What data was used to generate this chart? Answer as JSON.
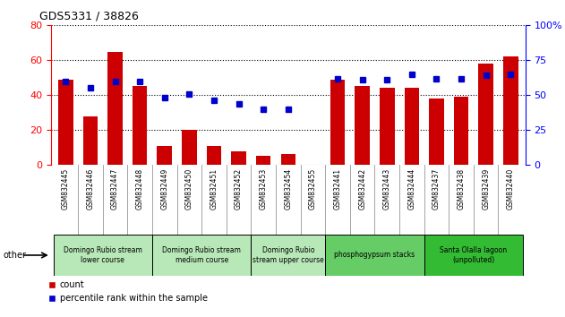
{
  "title": "GDS5331 / 38826",
  "samples": [
    "GSM832445",
    "GSM832446",
    "GSM832447",
    "GSM832448",
    "GSM832449",
    "GSM832450",
    "GSM832451",
    "GSM832452",
    "GSM832453",
    "GSM832454",
    "GSM832455",
    "GSM832441",
    "GSM832442",
    "GSM832443",
    "GSM832444",
    "GSM832437",
    "GSM832438",
    "GSM832439",
    "GSM832440"
  ],
  "counts": [
    49,
    28,
    65,
    45,
    11,
    20,
    11,
    8,
    5,
    6,
    0,
    49,
    45,
    44,
    44,
    38,
    39,
    58,
    62
  ],
  "percentiles": [
    60,
    55,
    60,
    60,
    48,
    51,
    46,
    44,
    40,
    40,
    0,
    62,
    61,
    61,
    65,
    62,
    62,
    64,
    65
  ],
  "groups": [
    {
      "label": "Domingo Rubio stream\nlower course",
      "start": 0,
      "end": 3,
      "color": "#b8e8b8"
    },
    {
      "label": "Domingo Rubio stream\nmedium course",
      "start": 4,
      "end": 7,
      "color": "#b8e8b8"
    },
    {
      "label": "Domingo Rubio\nstream upper course",
      "start": 8,
      "end": 10,
      "color": "#b8e8b8"
    },
    {
      "label": "phosphogypsum stacks",
      "start": 11,
      "end": 14,
      "color": "#66cc66"
    },
    {
      "label": "Santa Olalla lagoon\n(unpolluted)",
      "start": 15,
      "end": 18,
      "color": "#33bb33"
    }
  ],
  "bar_color": "#cc0000",
  "dot_color": "#0000cc",
  "ylim_left": [
    0,
    80
  ],
  "ylim_right": [
    0,
    100
  ],
  "yticks_left": [
    0,
    20,
    40,
    60,
    80
  ],
  "yticks_right": [
    0,
    25,
    50,
    75,
    100
  ],
  "bar_width": 0.6,
  "xtick_bg": "#d8d8d8"
}
